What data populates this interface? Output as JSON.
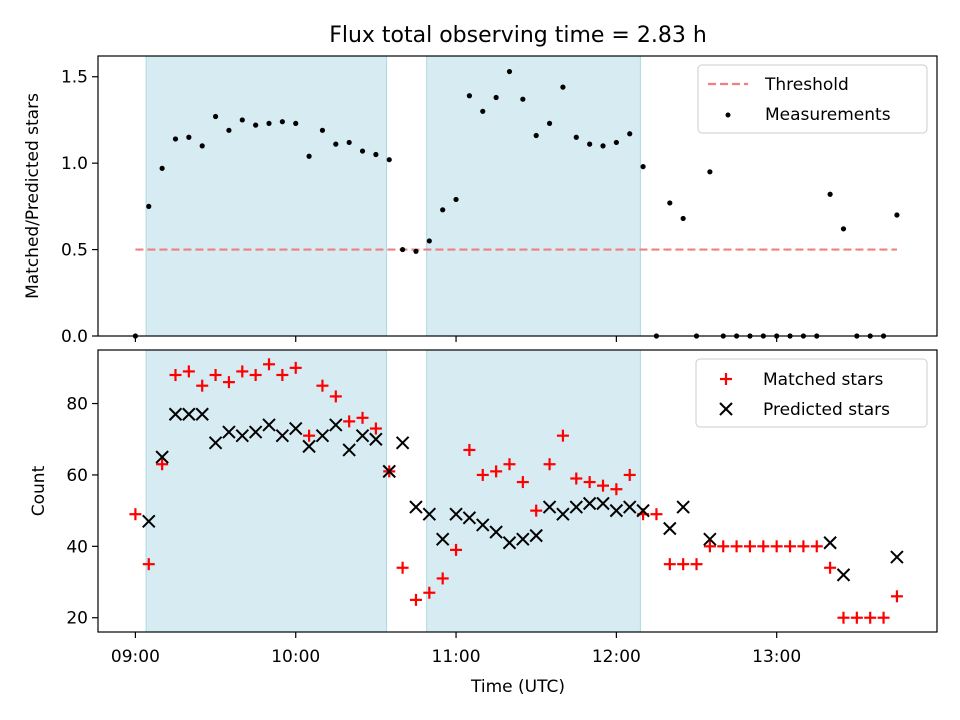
{
  "chart_data": {
    "title": "Flux total observing time = 2.83 h",
    "xlabel": "Time (UTC)",
    "x_ticks": [
      "09:00",
      "10:00",
      "11:00",
      "12:00",
      "13:00"
    ],
    "x_range": [
      "08:46",
      "14:00"
    ],
    "observing_windows": [
      [
        "09:04",
        "10:34"
      ],
      [
        "10:49",
        "12:09"
      ]
    ],
    "panels": [
      {
        "type": "scatter",
        "ylabel": "Matched/Predicted stars",
        "ylim": [
          0,
          1.62
        ],
        "y_ticks": [
          "0.0",
          "0.5",
          "1.0",
          "1.5"
        ],
        "legend": "top-right",
        "threshold": {
          "name": "Threshold",
          "value": 0.5,
          "x_range": [
            "09:00",
            "13:45"
          ],
          "color": "#f08080"
        },
        "series": [
          {
            "name": "Measurements",
            "color": "#000000",
            "marker": "dot",
            "x": [
              "09:00",
              "09:05",
              "09:10",
              "09:15",
              "09:20",
              "09:25",
              "09:30",
              "09:35",
              "09:40",
              "09:45",
              "09:50",
              "09:55",
              "10:00",
              "10:05",
              "10:10",
              "10:15",
              "10:20",
              "10:25",
              "10:30",
              "10:35",
              "10:40",
              "10:45",
              "10:50",
              "10:55",
              "11:00",
              "11:05",
              "11:10",
              "11:15",
              "11:20",
              "11:25",
              "11:30",
              "11:35",
              "11:40",
              "11:45",
              "11:50",
              "11:55",
              "12:00",
              "12:05",
              "12:10",
              "12:15",
              "12:20",
              "12:25",
              "12:30",
              "12:35",
              "12:40",
              "12:45",
              "12:50",
              "12:55",
              "13:00",
              "13:05",
              "13:10",
              "13:15",
              "13:20",
              "13:25",
              "13:30",
              "13:35",
              "13:40",
              "13:45"
            ],
            "y": [
              0,
              0.75,
              0.97,
              1.14,
              1.15,
              1.1,
              1.27,
              1.19,
              1.25,
              1.22,
              1.23,
              1.24,
              1.23,
              1.04,
              1.19,
              1.11,
              1.12,
              1.07,
              1.05,
              1.02,
              0.5,
              0.49,
              0.55,
              0.73,
              0.79,
              1.39,
              1.3,
              1.38,
              1.53,
              1.37,
              1.16,
              1.23,
              1.44,
              1.15,
              1.11,
              1.1,
              1.12,
              1.17,
              0.98,
              0,
              0.77,
              0.68,
              0,
              0.95,
              0,
              0,
              0,
              0,
              0,
              0,
              0,
              0,
              0.82,
              0.62,
              0,
              0,
              0,
              0.7
            ]
          }
        ]
      },
      {
        "type": "scatter",
        "ylabel": "Count",
        "ylim": [
          16,
          95
        ],
        "y_ticks": [
          "20",
          "40",
          "60",
          "80"
        ],
        "legend": "top-right",
        "series": [
          {
            "name": "Matched stars",
            "color": "#ff0000",
            "marker": "plus",
            "x": [
              "09:00",
              "09:05",
              "09:10",
              "09:15",
              "09:20",
              "09:25",
              "09:30",
              "09:35",
              "09:40",
              "09:45",
              "09:50",
              "09:55",
              "10:00",
              "10:05",
              "10:10",
              "10:15",
              "10:20",
              "10:25",
              "10:30",
              "10:35",
              "10:40",
              "10:45",
              "10:50",
              "10:55",
              "11:00",
              "11:05",
              "11:10",
              "11:15",
              "11:20",
              "11:25",
              "11:30",
              "11:35",
              "11:40",
              "11:45",
              "11:50",
              "11:55",
              "12:00",
              "12:05",
              "12:10",
              "12:15",
              "12:20",
              "12:25",
              "12:30",
              "12:35",
              "12:40",
              "12:45",
              "12:50",
              "12:55",
              "13:00",
              "13:05",
              "13:10",
              "13:15",
              "13:20",
              "13:25",
              "13:30",
              "13:35",
              "13:40",
              "13:45"
            ],
            "y": [
              49,
              35,
              63,
              88,
              89,
              85,
              88,
              86,
              89,
              88,
              91,
              88,
              90,
              71,
              85,
              82,
              75,
              76,
              73,
              61,
              34,
              25,
              27,
              31,
              39,
              67,
              60,
              61,
              63,
              58,
              50,
              63,
              71,
              59,
              58,
              57,
              56,
              60,
              49,
              49,
              35,
              35,
              35,
              40,
              40,
              40,
              40,
              40,
              40,
              40,
              40,
              40,
              34,
              20,
              20,
              20,
              20,
              26
            ]
          },
          {
            "name": "Predicted stars",
            "color": "#000000",
            "marker": "x",
            "x": [
              "09:05",
              "09:10",
              "09:15",
              "09:20",
              "09:25",
              "09:30",
              "09:35",
              "09:40",
              "09:45",
              "09:50",
              "09:55",
              "10:00",
              "10:05",
              "10:10",
              "10:15",
              "10:20",
              "10:25",
              "10:30",
              "10:35",
              "10:40",
              "10:45",
              "10:50",
              "10:55",
              "11:00",
              "11:05",
              "11:10",
              "11:15",
              "11:20",
              "11:25",
              "11:30",
              "11:35",
              "11:40",
              "11:45",
              "11:50",
              "11:55",
              "12:00",
              "12:05",
              "12:10",
              "12:20",
              "12:25",
              "12:35",
              "13:20",
              "13:25",
              "13:45"
            ],
            "y": [
              47,
              65,
              77,
              77,
              77,
              69,
              72,
              71,
              72,
              74,
              71,
              73,
              68,
              71,
              74,
              67,
              71,
              70,
              61,
              69,
              51,
              49,
              42,
              49,
              48,
              46,
              44,
              41,
              42,
              43,
              51,
              49,
              51,
              52,
              52,
              50,
              51,
              50,
              45,
              51,
              42,
              41,
              32,
              37
            ]
          }
        ]
      }
    ]
  }
}
